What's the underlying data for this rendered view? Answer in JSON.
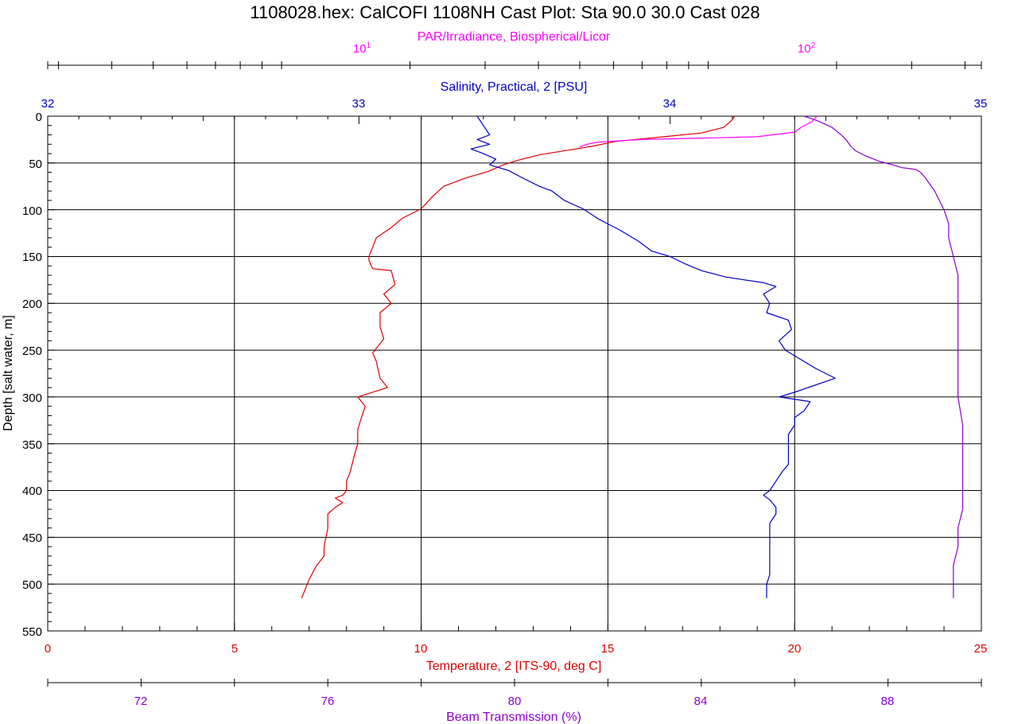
{
  "colors": {
    "salinity": "#0000c8",
    "temperature": "#e00000",
    "par": "#ff00ff",
    "beam": "#8a00d2",
    "grid": "#000000",
    "background": "#ffffff"
  },
  "chart_data": {
    "type": "line",
    "title": "1108028.hex: CalCOFI 1108NH Cast Plot: Sta 90.0 30.0 Cast 028",
    "ylabel": "Depth [salt water, m]",
    "ylim": [
      0,
      550
    ],
    "y_inverted": true,
    "y_ticks": [
      "0",
      "50",
      "100",
      "150",
      "200",
      "250",
      "300",
      "350",
      "400",
      "450",
      "500",
      "550"
    ],
    "grid": true,
    "axes": {
      "par": {
        "label": "PAR/Irradiance, Biospherical/Licor",
        "scale": "log",
        "range": [
          2.83,
          437
        ],
        "tick_labels": [
          {
            "value": 10,
            "base": "10",
            "exp": "1"
          },
          {
            "value": 100,
            "base": "10",
            "exp": "2"
          }
        ]
      },
      "salinity": {
        "label": "Salinity, Practical, 2 [PSU]",
        "range": [
          32,
          35
        ],
        "tick_labels": [
          "32",
          "33",
          "34",
          "35"
        ]
      },
      "temperature": {
        "label": "Temperature, 2 [ITS-90, deg C]",
        "range": [
          0,
          25
        ],
        "tick_labels": [
          "0",
          "5",
          "10",
          "15",
          "20",
          "25"
        ]
      },
      "beam": {
        "label": "Beam Transmission (%)",
        "range": [
          70,
          90
        ],
        "tick_labels": [
          "72",
          "76",
          "80",
          "84",
          "88"
        ]
      }
    },
    "series": [
      {
        "name": "Temperature, 2 [ITS-90, deg C]",
        "axis": "temperature",
        "points": [
          [
            18.4,
            0
          ],
          [
            18.3,
            5
          ],
          [
            18.1,
            12
          ],
          [
            17.5,
            18
          ],
          [
            16.5,
            22
          ],
          [
            15.2,
            27
          ],
          [
            14.6,
            32
          ],
          [
            14.0,
            36
          ],
          [
            13.2,
            41
          ],
          [
            12.6,
            47
          ],
          [
            12.2,
            52
          ],
          [
            11.8,
            59
          ],
          [
            11.2,
            66
          ],
          [
            10.6,
            75
          ],
          [
            10.3,
            86
          ],
          [
            10.0,
            99
          ],
          [
            9.5,
            109
          ],
          [
            9.2,
            119
          ],
          [
            8.8,
            130
          ],
          [
            8.7,
            140
          ],
          [
            8.6,
            150
          ],
          [
            8.6,
            154
          ],
          [
            8.7,
            163
          ],
          [
            9.2,
            165
          ],
          [
            9.3,
            180
          ],
          [
            9.0,
            190
          ],
          [
            9.2,
            200
          ],
          [
            8.9,
            210
          ],
          [
            8.9,
            225
          ],
          [
            9.0,
            238
          ],
          [
            8.8,
            248
          ],
          [
            8.7,
            253
          ],
          [
            8.8,
            262
          ],
          [
            8.9,
            280
          ],
          [
            9.1,
            290
          ],
          [
            8.3,
            300
          ],
          [
            8.5,
            310
          ],
          [
            8.4,
            322
          ],
          [
            8.3,
            335
          ],
          [
            8.3,
            350
          ],
          [
            8.2,
            364
          ],
          [
            8.1,
            380
          ],
          [
            8.0,
            390
          ],
          [
            8.0,
            400
          ],
          [
            7.9,
            405
          ],
          [
            7.7,
            408
          ],
          [
            7.9,
            413
          ],
          [
            7.7,
            418
          ],
          [
            7.5,
            425
          ],
          [
            7.5,
            440
          ],
          [
            7.4,
            460
          ],
          [
            7.4,
            470
          ],
          [
            7.2,
            480
          ],
          [
            7.0,
            495
          ],
          [
            6.9,
            505
          ],
          [
            6.8,
            515
          ]
        ]
      },
      {
        "name": "Salinity, Practical, 2 [PSU]",
        "axis": "salinity",
        "points": [
          [
            33.38,
            0
          ],
          [
            33.4,
            10
          ],
          [
            33.42,
            20
          ],
          [
            33.38,
            25
          ],
          [
            33.42,
            30
          ],
          [
            33.36,
            35
          ],
          [
            33.4,
            40
          ],
          [
            33.44,
            46
          ],
          [
            33.42,
            52
          ],
          [
            33.48,
            58
          ],
          [
            33.52,
            65
          ],
          [
            33.58,
            75
          ],
          [
            33.62,
            80
          ],
          [
            33.66,
            90
          ],
          [
            33.72,
            99
          ],
          [
            33.77,
            110
          ],
          [
            33.84,
            122
          ],
          [
            33.9,
            134
          ],
          [
            33.94,
            144
          ],
          [
            34.0,
            150
          ],
          [
            34.05,
            158
          ],
          [
            34.1,
            165
          ],
          [
            34.18,
            172
          ],
          [
            34.3,
            178
          ],
          [
            34.34,
            182
          ],
          [
            34.3,
            190
          ],
          [
            34.32,
            200
          ],
          [
            34.31,
            210
          ],
          [
            34.38,
            218
          ],
          [
            34.39,
            228
          ],
          [
            34.35,
            240
          ],
          [
            34.37,
            250
          ],
          [
            34.42,
            260
          ],
          [
            34.47,
            270
          ],
          [
            34.53,
            280
          ],
          [
            34.4,
            295
          ],
          [
            34.35,
            300
          ],
          [
            34.45,
            305
          ],
          [
            34.43,
            315
          ],
          [
            34.4,
            322
          ],
          [
            34.4,
            330
          ],
          [
            34.38,
            340
          ],
          [
            34.38,
            350
          ],
          [
            34.38,
            360
          ],
          [
            34.38,
            372
          ],
          [
            34.36,
            380
          ],
          [
            34.34,
            390
          ],
          [
            34.32,
            400
          ],
          [
            34.3,
            405
          ],
          [
            34.32,
            410
          ],
          [
            34.34,
            418
          ],
          [
            34.34,
            425
          ],
          [
            34.32,
            435
          ],
          [
            34.32,
            445
          ],
          [
            34.32,
            460
          ],
          [
            34.32,
            475
          ],
          [
            34.32,
            490
          ],
          [
            34.31,
            500
          ],
          [
            34.31,
            515
          ]
        ]
      },
      {
        "name": "Beam Transmission (%)",
        "axis": "beam",
        "points": [
          [
            86.2,
            0
          ],
          [
            86.5,
            5
          ],
          [
            86.8,
            12
          ],
          [
            87.0,
            20
          ],
          [
            87.1,
            25
          ],
          [
            87.2,
            32
          ],
          [
            87.3,
            37
          ],
          [
            87.5,
            42
          ],
          [
            87.7,
            46
          ],
          [
            87.8,
            48
          ],
          [
            88.1,
            52
          ],
          [
            88.3,
            55
          ],
          [
            88.6,
            57
          ],
          [
            88.7,
            60
          ],
          [
            88.8,
            66
          ],
          [
            88.9,
            73
          ],
          [
            89.0,
            80
          ],
          [
            89.1,
            90
          ],
          [
            89.2,
            100
          ],
          [
            89.3,
            115
          ],
          [
            89.3,
            130
          ],
          [
            89.4,
            150
          ],
          [
            89.5,
            170
          ],
          [
            89.5,
            200
          ],
          [
            89.5,
            230
          ],
          [
            89.5,
            260
          ],
          [
            89.5,
            300
          ],
          [
            89.6,
            330
          ],
          [
            89.6,
            360
          ],
          [
            89.6,
            390
          ],
          [
            89.6,
            420
          ],
          [
            89.5,
            440
          ],
          [
            89.5,
            460
          ],
          [
            89.4,
            480
          ],
          [
            89.4,
            500
          ],
          [
            89.4,
            515
          ]
        ]
      },
      {
        "name": "PAR/Irradiance, Biospherical/Licor",
        "axis": "par",
        "points": [
          [
            180,
            0
          ],
          [
            175,
            6
          ],
          [
            165,
            12
          ],
          [
            160,
            17
          ],
          [
            130,
            22
          ],
          [
            70,
            25
          ],
          [
            58,
            27
          ],
          [
            55,
            28
          ],
          [
            52,
            30
          ],
          [
            50,
            33
          ]
        ]
      }
    ]
  }
}
